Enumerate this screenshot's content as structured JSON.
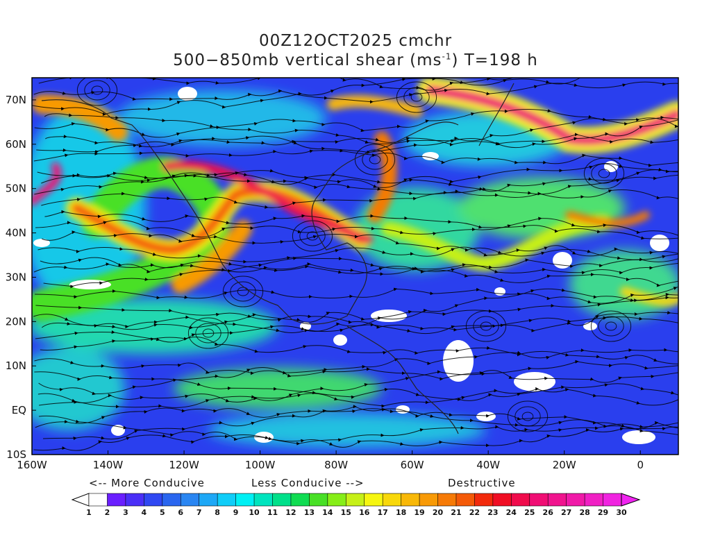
{
  "title": {
    "line1": "00Z12OCT2025 cmchr",
    "line2_main": "500−850mb vertical shear (ms",
    "line2_sup": "-1",
    "line2_tail": ") T=198 h"
  },
  "map": {
    "lat_labels": [
      "70N",
      "60N",
      "50N",
      "40N",
      "30N",
      "20N",
      "10N",
      "EQ",
      "10S"
    ],
    "lon_labels": [
      "160W",
      "140W",
      "120W",
      "100W",
      "80W",
      "60W",
      "40W",
      "20W",
      "0"
    ],
    "lat_range": [
      -10,
      75
    ],
    "lon_range": [
      -160,
      10
    ]
  },
  "legend": {
    "more_conducive": "<-- More Conducive",
    "less_conducive": "Less Conducive -->",
    "destructive": "Destructive",
    "levels": [
      "1",
      "2",
      "3",
      "4",
      "5",
      "6",
      "7",
      "8",
      "9",
      "10",
      "11",
      "12",
      "13",
      "14",
      "15",
      "16",
      "17",
      "18",
      "19",
      "20",
      "21",
      "22",
      "23",
      "24",
      "25",
      "26",
      "27",
      "28",
      "29",
      "30"
    ],
    "colors": [
      "#ffffff",
      "#6a1fff",
      "#4a2ff7",
      "#3048f2",
      "#2a66ef",
      "#2a86f2",
      "#1ea8f6",
      "#10cdf8",
      "#00f0f4",
      "#00e4be",
      "#00e08a",
      "#10dc52",
      "#48e026",
      "#86ee18",
      "#c6f018",
      "#f6f610",
      "#f8d80a",
      "#f8b808",
      "#f89a06",
      "#f67a06",
      "#f45a08",
      "#f22a0c",
      "#f00e24",
      "#f00c4c",
      "#f00e74",
      "#f0148e",
      "#f01aa8",
      "#f020c4",
      "#f024e0"
    ],
    "units": "ms-1"
  }
}
